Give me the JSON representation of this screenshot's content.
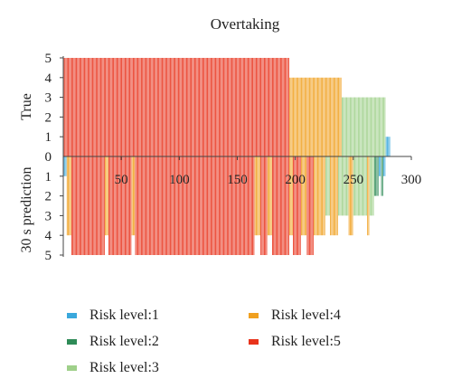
{
  "chart_data": {
    "type": "bar",
    "title": "Overtaking",
    "ylabel_top": "True",
    "ylabel_bottom": "30 s prediction",
    "x_ticks": [
      50,
      100,
      150,
      200,
      250,
      300
    ],
    "zero_label": "0",
    "y_ticks": [
      1,
      2,
      3,
      4,
      5
    ],
    "xlim": [
      0,
      300
    ],
    "ylim_top": [
      0,
      5
    ],
    "ylim_bottom": [
      0,
      5
    ],
    "grid": false,
    "colors": {
      "1": "#3aa8dc",
      "2": "#2e8b57",
      "3": "#9fd08a",
      "4": "#f0a020",
      "5": "#e8331c"
    },
    "true_segments": [
      {
        "x_start": 1,
        "x_end": 195,
        "risk_level": 5
      },
      {
        "x_start": 196,
        "x_end": 240,
        "risk_level": 4
      },
      {
        "x_start": 241,
        "x_end": 278,
        "risk_level": 3
      },
      {
        "x_start": 279,
        "x_end": 282,
        "risk_level": 1
      }
    ],
    "prediction_segments": [
      {
        "x_start": 1,
        "x_end": 3,
        "risk_level": 1
      },
      {
        "x_start": 4,
        "x_end": 7,
        "risk_level": 4
      },
      {
        "x_start": 8,
        "x_end": 36,
        "risk_level": 5
      },
      {
        "x_start": 37,
        "x_end": 39,
        "risk_level": 4
      },
      {
        "x_start": 40,
        "x_end": 59,
        "risk_level": 5
      },
      {
        "x_start": 60,
        "x_end": 62,
        "risk_level": 4
      },
      {
        "x_start": 63,
        "x_end": 165,
        "risk_level": 5
      },
      {
        "x_start": 166,
        "x_end": 170,
        "risk_level": 4
      },
      {
        "x_start": 171,
        "x_end": 176,
        "risk_level": 5
      },
      {
        "x_start": 177,
        "x_end": 180,
        "risk_level": 4
      },
      {
        "x_start": 181,
        "x_end": 195,
        "risk_level": 5
      },
      {
        "x_start": 196,
        "x_end": 198,
        "risk_level": 4
      },
      {
        "x_start": 199,
        "x_end": 205,
        "risk_level": 5
      },
      {
        "x_start": 206,
        "x_end": 210,
        "risk_level": 4
      },
      {
        "x_start": 211,
        "x_end": 216,
        "risk_level": 5
      },
      {
        "x_start": 217,
        "x_end": 226,
        "risk_level": 4
      },
      {
        "x_start": 227,
        "x_end": 230,
        "risk_level": 3
      },
      {
        "x_start": 231,
        "x_end": 237,
        "risk_level": 4
      },
      {
        "x_start": 238,
        "x_end": 246,
        "risk_level": 3
      },
      {
        "x_start": 247,
        "x_end": 250,
        "risk_level": 4
      },
      {
        "x_start": 251,
        "x_end": 262,
        "risk_level": 3
      },
      {
        "x_start": 263,
        "x_end": 264,
        "risk_level": 4
      },
      {
        "x_start": 265,
        "x_end": 268,
        "risk_level": 3
      },
      {
        "x_start": 269,
        "x_end": 272,
        "risk_level": 2
      },
      {
        "x_start": 273,
        "x_end": 274,
        "risk_level": 1
      },
      {
        "x_start": 275,
        "x_end": 276,
        "risk_level": 2
      },
      {
        "x_start": 277,
        "x_end": 278,
        "risk_level": 1
      }
    ]
  },
  "legend": [
    {
      "label": "Risk level:1",
      "color": "#3aa8dc"
    },
    {
      "label": "Risk level:4",
      "color": "#f0a020"
    },
    {
      "label": "Risk level:2",
      "color": "#2e8b57"
    },
    {
      "label": "Risk level:5",
      "color": "#e8331c"
    },
    {
      "label": "Risk level:3",
      "color": "#9fd08a"
    }
  ]
}
